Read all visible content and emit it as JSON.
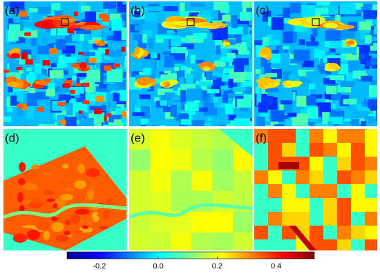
{
  "panels": [
    {
      "label": "(a)"
    },
    {
      "label": "(b)"
    },
    {
      "label": "(c)"
    },
    {
      "label": "(d)"
    },
    {
      "label": "(e)"
    },
    {
      "label": "(f)"
    }
  ],
  "colorbar": {
    "range": [
      -0.31,
      0.53
    ],
    "ticks": [
      -0.2,
      {
        "value": 0,
        "label": "0.0"
      },
      0.2,
      0.4
    ]
  }
}
